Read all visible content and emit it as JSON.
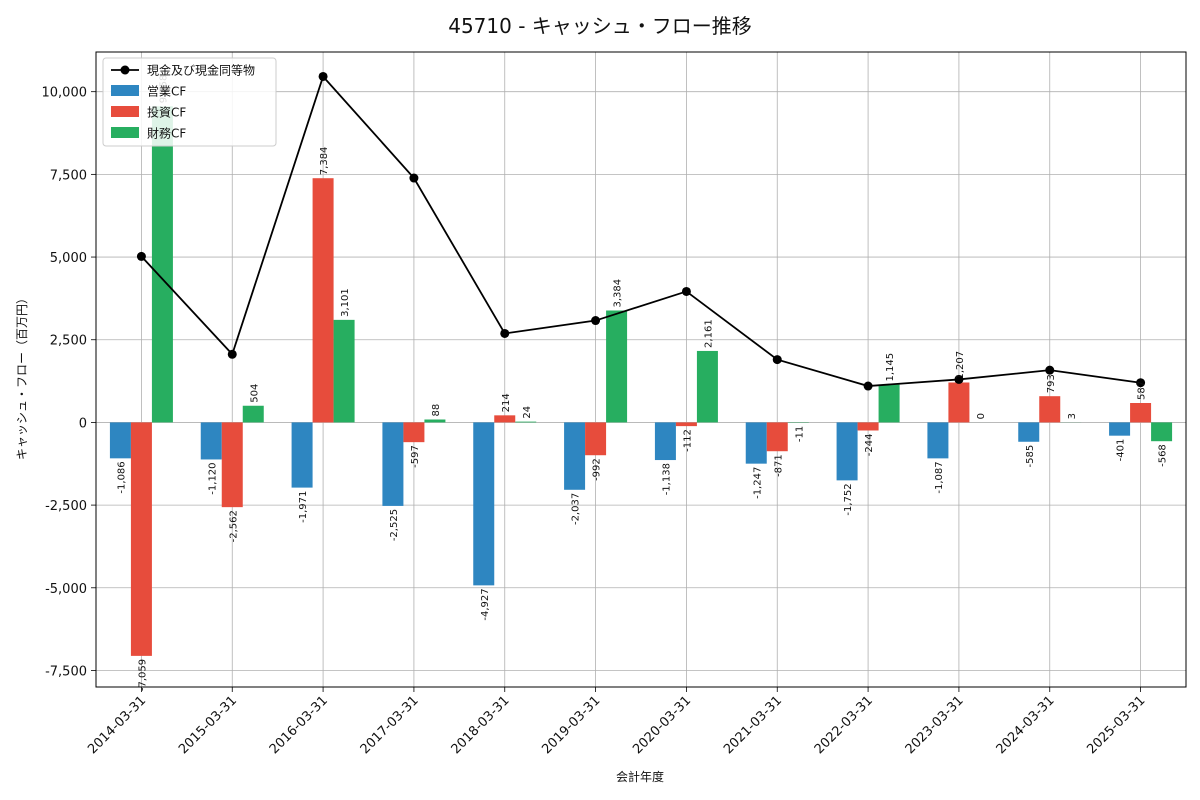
{
  "chart_data": {
    "type": "bar",
    "title": "45710 - キャッシュ・フロー推移",
    "xlabel": "会計年度",
    "ylabel": "キャッシュ・フロー（百万円）",
    "categories": [
      "2014-03-31",
      "2015-03-31",
      "2016-03-31",
      "2017-03-31",
      "2018-03-31",
      "2019-03-31",
      "2020-03-31",
      "2021-03-31",
      "2022-03-31",
      "2023-03-31",
      "2024-03-31",
      "2025-03-31"
    ],
    "ylim": [
      -8000,
      11200
    ],
    "yticks": [
      -7500,
      -5000,
      -2500,
      0,
      2500,
      5000,
      7500,
      10000
    ],
    "ytick_labels": [
      "-7,500",
      "-5,000",
      "-2,500",
      "0",
      "2,500",
      "5,000",
      "7,500",
      "10,000"
    ],
    "grid": true,
    "legend_position": "top-left",
    "series": [
      {
        "name": "営業CF",
        "kind": "bar",
        "color": "#2e86c1",
        "values": [
          -1086,
          -1120,
          -1971,
          -2525,
          -4927,
          -2037,
          -1138,
          -1247,
          -1752,
          -1087,
          -585,
          -401
        ],
        "labels": [
          "-1,086",
          "-1,120",
          "-1,971",
          "-2,525",
          "-4,927",
          "-2,037",
          "-1,138",
          "-1,247",
          "-1,752",
          "-1,087",
          "-585",
          "-401"
        ]
      },
      {
        "name": "投資CF",
        "kind": "bar",
        "color": "#e74c3c",
        "values": [
          -7059,
          -2562,
          7384,
          -597,
          214,
          -992,
          -112,
          -871,
          -244,
          1207,
          793,
          587
        ],
        "labels": [
          "-7,059",
          "-2,562",
          "7,384",
          "-597",
          "214",
          "-992",
          "-112",
          "-871",
          "-244",
          "1,207",
          "793",
          "587"
        ]
      },
      {
        "name": "財務CF",
        "kind": "bar",
        "color": "#27ae60",
        "values": [
          9558,
          504,
          3101,
          88,
          24,
          3384,
          2161,
          -11,
          1145,
          0,
          3,
          -568
        ],
        "labels": [
          "9,558",
          "504",
          "3,101",
          "88",
          "24",
          "3,384",
          "2,161",
          "-11",
          "1,145",
          "0",
          "3",
          "-568"
        ]
      },
      {
        "name": "現金及び現金同等物",
        "kind": "line",
        "color": "#000000",
        "values": [
          5020,
          2060,
          10460,
          7390,
          2690,
          3080,
          3960,
          1900,
          1100,
          1300,
          1580,
          1200
        ]
      }
    ]
  }
}
